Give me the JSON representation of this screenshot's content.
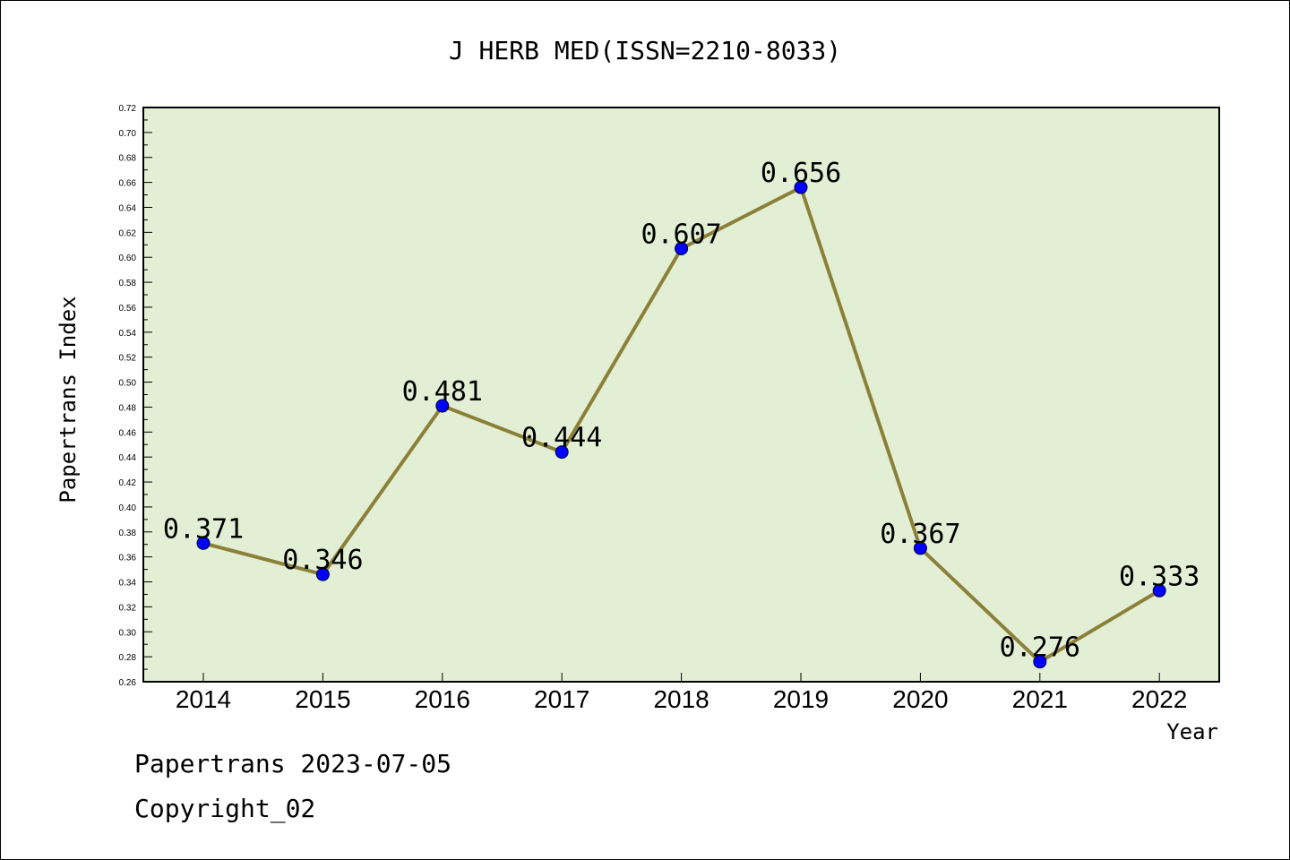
{
  "chart_data": {
    "type": "line",
    "title": "J HERB MED(ISSN=2210-8033)",
    "xlabel": "Year",
    "ylabel": "Papertrans Index",
    "categories": [
      "2014",
      "2015",
      "2016",
      "2017",
      "2018",
      "2019",
      "2020",
      "2021",
      "2022"
    ],
    "values": [
      0.371,
      0.346,
      0.481,
      0.444,
      0.607,
      0.656,
      0.367,
      0.276,
      0.333
    ],
    "data_labels": [
      "0.371",
      "0.346",
      "0.481",
      "0.444",
      "0.607",
      "0.656",
      "0.367",
      "0.276",
      "0.333"
    ],
    "ylim": [
      0.26,
      0.72
    ],
    "y_ticks": [
      "0.26",
      "0.28",
      "0.30",
      "0.32",
      "0.34",
      "0.36",
      "0.38",
      "0.40",
      "0.42",
      "0.44",
      "0.46",
      "0.48",
      "0.50",
      "0.52",
      "0.54",
      "0.56",
      "0.58",
      "0.60",
      "0.62",
      "0.64",
      "0.66",
      "0.68",
      "0.70",
      "0.72"
    ],
    "grid": false,
    "legend": "none",
    "colors": {
      "plot_background": "#e2efd4",
      "line": "#8b8038",
      "marker": "#0000ff"
    }
  },
  "footer": {
    "line1": "Papertrans 2023-07-05",
    "line2": "Copyright_02"
  }
}
